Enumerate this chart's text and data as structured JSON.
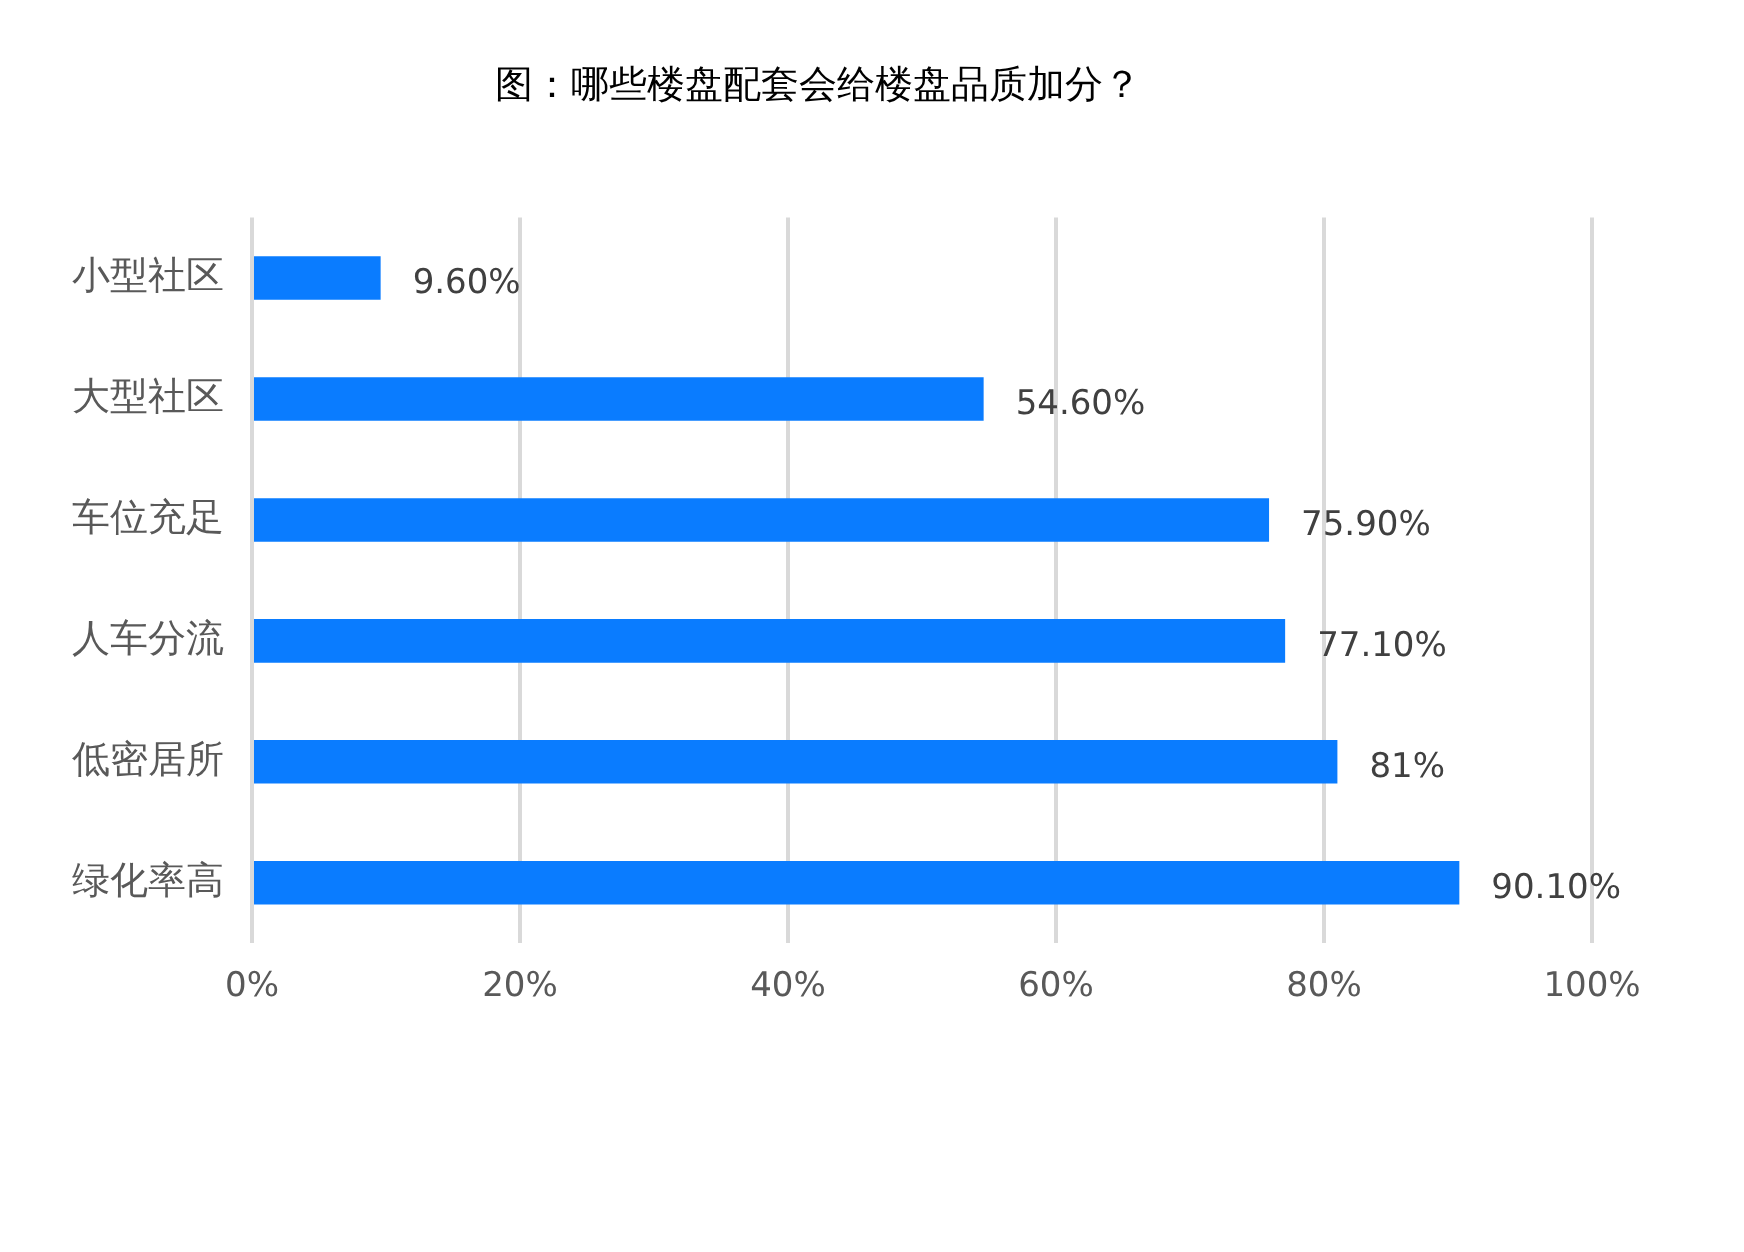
{
  "chart_data": {
    "type": "bar",
    "orientation": "horizontal",
    "title": "图：哪些楼盘配套会给楼盘品质加分？",
    "categories": [
      "小型社区",
      "大型社区",
      "车位充足",
      "人车分流",
      "低密居所",
      "绿化率高"
    ],
    "values": [
      9.6,
      54.6,
      75.9,
      77.1,
      81,
      90.1
    ],
    "value_labels": [
      "9.60%",
      "54.60%",
      "75.90%",
      "77.10%",
      "81%",
      "90.10%"
    ],
    "color": "#0a7cff",
    "xlim": [
      0,
      100
    ],
    "xticks": [
      {
        "value": 0,
        "label": "0%"
      },
      {
        "value": 20,
        "label": "20%"
      },
      {
        "value": 40,
        "label": "40%"
      },
      {
        "value": 60,
        "label": "60%"
      },
      {
        "value": 80,
        "label": "80%"
      },
      {
        "value": 100,
        "label": "100%"
      }
    ],
    "grid": "x",
    "legend": false
  }
}
